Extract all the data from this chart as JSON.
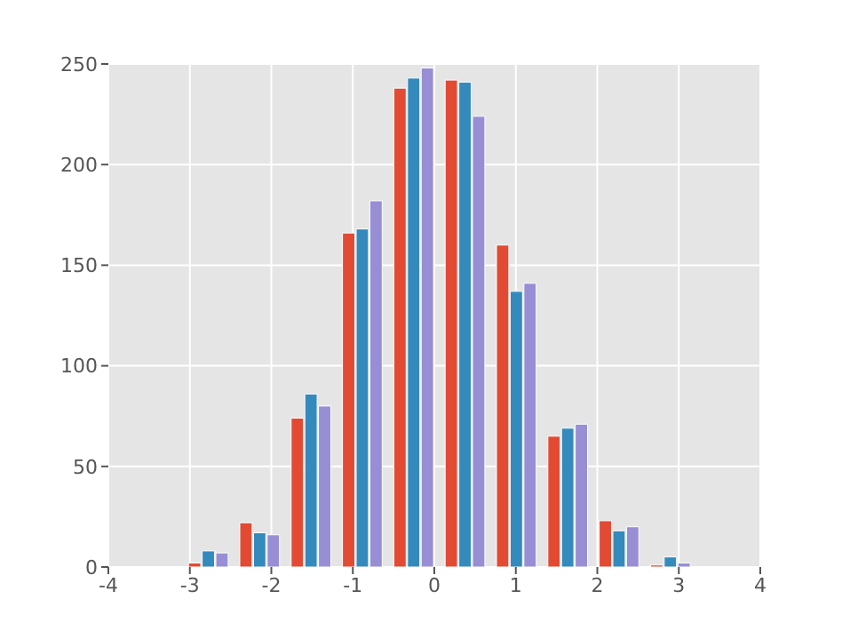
{
  "chart_data": {
    "type": "histogram",
    "bins": [
      -3.08,
      -2.45,
      -1.82,
      -1.19,
      -0.56,
      0.07,
      0.7,
      1.33,
      1.96,
      2.59,
      3.22
    ],
    "series": [
      {
        "color": "#e24a33",
        "values": [
          2,
          22,
          74,
          166,
          238,
          242,
          160,
          65,
          23,
          1
        ]
      },
      {
        "color": "#348abd",
        "values": [
          8,
          17,
          86,
          168,
          243,
          241,
          137,
          69,
          18,
          5
        ]
      },
      {
        "color": "#988ed5",
        "values": [
          7,
          16,
          80,
          182,
          248,
          224,
          141,
          71,
          20,
          2
        ]
      }
    ],
    "xlim": [
      -4,
      4
    ],
    "xticks": [
      -4,
      -3,
      -2,
      -1,
      0,
      1,
      2,
      3,
      4
    ],
    "ylim": [
      0,
      250
    ],
    "yticks": [
      0,
      50,
      100,
      150,
      200,
      250
    ],
    "grid": true
  }
}
